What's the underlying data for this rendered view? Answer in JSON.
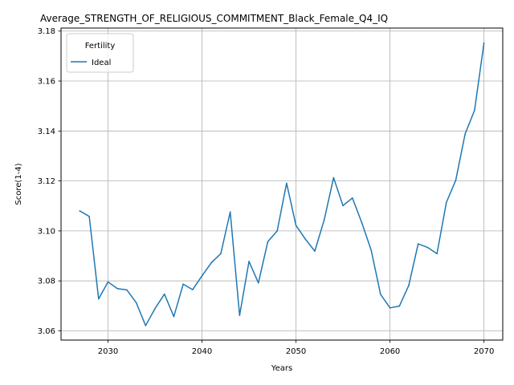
{
  "chart_data": {
    "type": "line",
    "title": "Average_STRENGTH_OF_RELIGIOUS_COMMITMENT_Black_Female_Q4_IQ",
    "xlabel": "Years",
    "ylabel": "Score(1-4)",
    "xlim": [
      2025,
      2072
    ],
    "ylim": [
      3.0563,
      3.1812
    ],
    "xticks": [
      2030,
      2040,
      2050,
      2060,
      2070
    ],
    "yticks": [
      3.06,
      3.08,
      3.1,
      3.12,
      3.14,
      3.16,
      3.18
    ],
    "ytick_labels": [
      "3.06",
      "3.08",
      "3.10",
      "3.12",
      "3.14",
      "3.16",
      "3.18"
    ],
    "grid": true,
    "legend": {
      "title": "Fertility",
      "placement": "top-left"
    },
    "series": [
      {
        "name": "Ideal",
        "color": "#1f77b4",
        "x": [
          2027,
          2028,
          2029,
          2030,
          2031,
          2032,
          2033,
          2034,
          2035,
          2036,
          2037,
          2038,
          2039,
          2040,
          2041,
          2042,
          2043,
          2044,
          2045,
          2046,
          2047,
          2048,
          2049,
          2050,
          2051,
          2052,
          2053,
          2054,
          2055,
          2056,
          2057,
          2058,
          2059,
          2060,
          2061,
          2062,
          2063,
          2064,
          2065,
          2066,
          2067,
          2068,
          2069,
          2070
        ],
        "y": [
          3.108,
          3.1058,
          3.0728,
          3.0796,
          3.0769,
          3.0764,
          3.0713,
          3.0621,
          3.0689,
          3.0747,
          3.0657,
          3.0787,
          3.0765,
          3.082,
          3.0873,
          3.0909,
          3.1076,
          3.0662,
          3.0878,
          3.0792,
          3.0957,
          3.1,
          3.1191,
          3.1022,
          3.0967,
          3.0919,
          3.1044,
          3.1213,
          3.1101,
          3.1132,
          3.1033,
          3.0923,
          3.0746,
          3.0692,
          3.0699,
          3.0782,
          3.0948,
          3.0934,
          3.0909,
          3.1114,
          3.1203,
          3.1389,
          3.1483,
          3.1752
        ]
      }
    ]
  }
}
